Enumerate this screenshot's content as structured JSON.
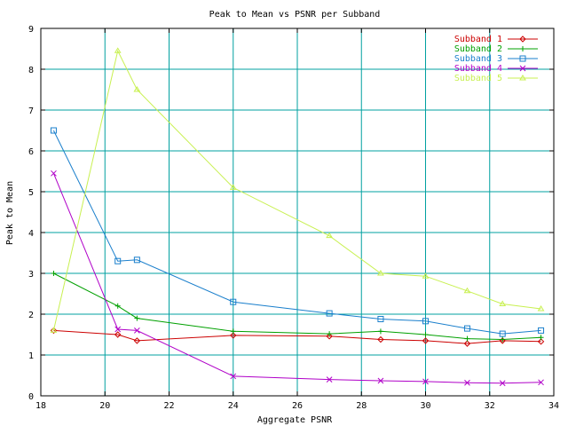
{
  "chart_data": {
    "type": "line",
    "title": "Peak to Mean vs PSNR per Subband",
    "xlabel": "Aggregate PSNR",
    "ylabel": "Peak to Mean",
    "xlim": [
      18,
      34
    ],
    "ylim": [
      0,
      9
    ],
    "x_ticks": [
      18,
      20,
      22,
      24,
      26,
      28,
      30,
      32,
      34
    ],
    "y_ticks": [
      0,
      1,
      2,
      3,
      4,
      5,
      6,
      7,
      8,
      9
    ],
    "grid": true,
    "legend_position": "top-right",
    "x": [
      18.4,
      20.4,
      21.0,
      24.0,
      27.0,
      28.6,
      30.0,
      31.3,
      32.4,
      33.6
    ],
    "series": [
      {
        "name": "Subband 1",
        "color": "#cc0000",
        "marker": "diamond",
        "values": [
          1.6,
          1.5,
          1.35,
          1.48,
          1.46,
          1.38,
          1.35,
          1.28,
          1.35,
          1.33
        ]
      },
      {
        "name": "Subband 2",
        "color": "#00a000",
        "marker": "plus",
        "values": [
          3.0,
          2.2,
          1.9,
          1.58,
          1.52,
          1.58,
          1.5,
          1.4,
          1.38,
          1.43
        ]
      },
      {
        "name": "Subband 3",
        "color": "#1a7fcc",
        "marker": "square",
        "values": [
          6.5,
          3.3,
          3.33,
          2.3,
          2.02,
          1.88,
          1.83,
          1.65,
          1.52,
          1.6
        ]
      },
      {
        "name": "Subband 4",
        "color": "#b000c8",
        "marker": "cross",
        "values": [
          5.45,
          1.63,
          1.6,
          0.48,
          0.4,
          0.37,
          0.35,
          0.32,
          0.31,
          0.33
        ]
      },
      {
        "name": "Subband 5",
        "color": "#c8f050",
        "marker": "triangle",
        "values": [
          1.6,
          8.45,
          7.5,
          5.1,
          3.92,
          3.0,
          2.93,
          2.57,
          2.25,
          2.13
        ]
      }
    ]
  }
}
